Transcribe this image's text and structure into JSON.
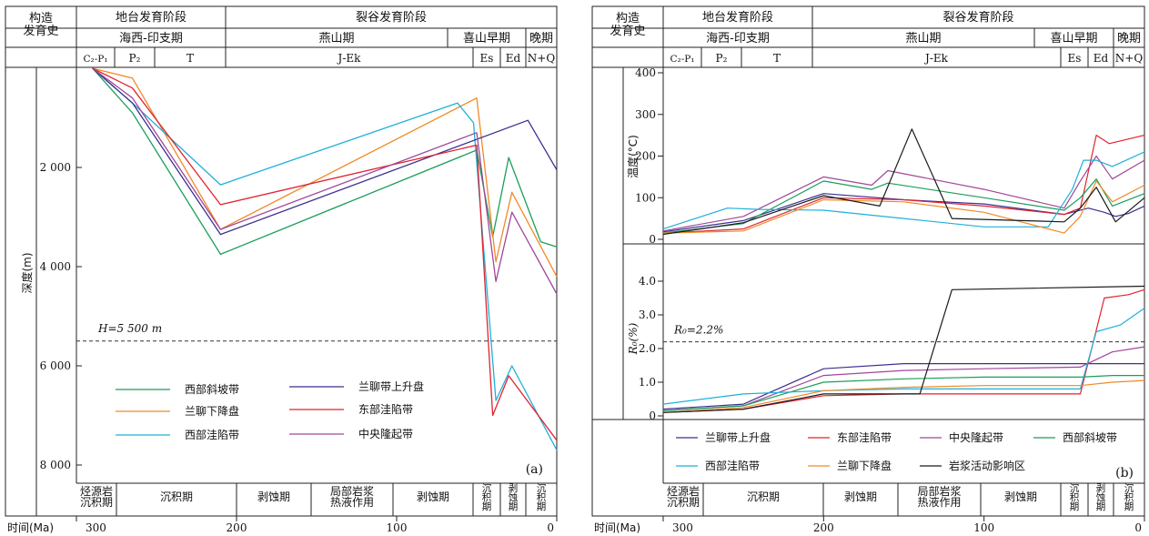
{
  "header": {
    "row_label": "构造\n发育史",
    "stages": [
      "地台发育阶段",
      "裂谷发育阶段"
    ],
    "periods": [
      "海西-印支期",
      "燕山期",
      "喜山早期",
      "晚期"
    ],
    "strata": [
      "C₂-P₁",
      "P₂",
      "T",
      "J-Ek",
      "Es",
      "Ed",
      "N+Q"
    ]
  },
  "events": [
    "烃源岩\n沉积期",
    "沉积期",
    "剥蚀期",
    "局部岩浆\n热液作用",
    "剥蚀期",
    "沉\n积\n期",
    "剥\n蚀\n期",
    "沉\n积\n期"
  ],
  "time_axis": {
    "label": "时间(Ma)",
    "ticks": [
      "300",
      "200",
      "100",
      "0"
    ]
  },
  "panel_a": {
    "tag": "(a)",
    "ylabel": "深度(m)",
    "yticks": [
      "2 000",
      "4 000",
      "6 000",
      "8 000"
    ],
    "ref_label": "H=5 500 m"
  },
  "panel_b": {
    "tag": "(b)",
    "temp_label": "温度(°C)",
    "temp_ticks": [
      "0",
      "100",
      "200",
      "300",
      "400"
    ],
    "ro_label": "R₀(%)",
    "ro_ticks": [
      "0",
      "1.0",
      "2.0",
      "3.0",
      "4.0"
    ],
    "ref_label": "R₀=2.2%"
  },
  "colors": {
    "xibu_xiepo": "#1a9e5a",
    "lanliao_xiajiang": "#f08a28",
    "xibu_waxian": "#1fb0d8",
    "lanliao_shangsheng": "#3a3190",
    "dongbu_waxian": "#e0232e",
    "zhongyang_longqi": "#a0479a",
    "yanjiang": "#1a1a1a"
  },
  "chart_data": [
    {
      "type": "line",
      "panel": "a",
      "title": "",
      "xlabel": "时间(Ma)",
      "ylabel": "深度(m)",
      "xlim": [
        300,
        0
      ],
      "ylim": [
        0,
        8300
      ],
      "reference_line": {
        "y": 5500,
        "label": "H=5 500 m"
      },
      "legend": {
        "placement": "bottom-center",
        "columns": 2
      },
      "series": [
        {
          "name": "西部斜坡带",
          "color": "#1a9e5a",
          "points": [
            [
              290,
              0
            ],
            [
              265,
              900
            ],
            [
              210,
              3750
            ],
            [
              50,
              1650
            ],
            [
              40,
              3400
            ],
            [
              30,
              1800
            ],
            [
              10,
              3500
            ],
            [
              0,
              3600
            ]
          ]
        },
        {
          "name": "兰聊下降盘",
          "color": "#f08a28",
          "points": [
            [
              290,
              0
            ],
            [
              265,
              200
            ],
            [
              210,
              3250
            ],
            [
              50,
              600
            ],
            [
              38,
              3900
            ],
            [
              28,
              2500
            ],
            [
              0,
              4200
            ]
          ]
        },
        {
          "name": "西部洼陷带",
          "color": "#1fb0d8",
          "points": [
            [
              290,
              0
            ],
            [
              265,
              700
            ],
            [
              210,
              2350
            ],
            [
              62,
              700
            ],
            [
              52,
              1100
            ],
            [
              38,
              6700
            ],
            [
              28,
              6000
            ],
            [
              0,
              7700
            ]
          ]
        },
        {
          "name": "兰聊带上升盘",
          "color": "#3a3190",
          "points": [
            [
              290,
              0
            ],
            [
              265,
              700
            ],
            [
              210,
              3350
            ],
            [
              18,
              1050
            ],
            [
              0,
              2050
            ]
          ]
        },
        {
          "name": "东部洼陷带",
          "color": "#e0232e",
          "points": [
            [
              290,
              0
            ],
            [
              265,
              400
            ],
            [
              210,
              2750
            ],
            [
              50,
              1550
            ],
            [
              40,
              7000
            ],
            [
              30,
              6200
            ],
            [
              0,
              7500
            ]
          ]
        },
        {
          "name": "中央隆起带",
          "color": "#a0479a",
          "points": [
            [
              290,
              0
            ],
            [
              265,
              600
            ],
            [
              210,
              3250
            ],
            [
              50,
              1300
            ],
            [
              38,
              4300
            ],
            [
              28,
              2900
            ],
            [
              0,
              4550
            ]
          ]
        }
      ]
    },
    {
      "type": "line",
      "panel": "b-temperature",
      "title": "",
      "xlabel": "时间(Ma)",
      "ylabel": "温度(°C)",
      "xlim": [
        300,
        0
      ],
      "ylim": [
        0,
        400
      ],
      "legend": {
        "placement": "bottom",
        "columns": 4
      },
      "series": [
        {
          "name": "兰聊带上升盘",
          "color": "#3a3190",
          "points": [
            [
              300,
              18
            ],
            [
              250,
              45
            ],
            [
              200,
              110
            ],
            [
              150,
              95
            ],
            [
              100,
              85
            ],
            [
              50,
              60
            ],
            [
              35,
              75
            ],
            [
              25,
              65
            ],
            [
              18,
              55
            ],
            [
              10,
              62
            ],
            [
              0,
              80
            ]
          ]
        },
        {
          "name": "东部洼陷带",
          "color": "#e0232e",
          "points": [
            [
              300,
              15
            ],
            [
              250,
              25
            ],
            [
              200,
              100
            ],
            [
              150,
              95
            ],
            [
              100,
              80
            ],
            [
              50,
              60
            ],
            [
              40,
              75
            ],
            [
              30,
              250
            ],
            [
              22,
              230
            ],
            [
              0,
              250
            ]
          ]
        },
        {
          "name": "中央隆起带",
          "color": "#a0479a",
          "points": [
            [
              300,
              20
            ],
            [
              250,
              55
            ],
            [
              200,
              150
            ],
            [
              170,
              130
            ],
            [
              160,
              165
            ],
            [
              100,
              120
            ],
            [
              50,
              75
            ],
            [
              40,
              140
            ],
            [
              30,
              200
            ],
            [
              20,
              145
            ],
            [
              0,
              190
            ]
          ]
        },
        {
          "name": "西部斜坡带",
          "color": "#1a9e5a",
          "points": [
            [
              300,
              15
            ],
            [
              250,
              38
            ],
            [
              200,
              140
            ],
            [
              170,
              120
            ],
            [
              160,
              135
            ],
            [
              100,
              100
            ],
            [
              50,
              70
            ],
            [
              40,
              100
            ],
            [
              30,
              145
            ],
            [
              20,
              80
            ],
            [
              0,
              110
            ]
          ]
        },
        {
          "name": "西部洼陷带",
          "color": "#1fb0d8",
          "points": [
            [
              300,
              25
            ],
            [
              260,
              75
            ],
            [
              240,
              72
            ],
            [
              200,
              70
            ],
            [
              150,
              50
            ],
            [
              100,
              30
            ],
            [
              60,
              30
            ],
            [
              45,
              120
            ],
            [
              38,
              190
            ],
            [
              30,
              190
            ],
            [
              20,
              175
            ],
            [
              0,
              210
            ]
          ]
        },
        {
          "name": "兰聊下降盘",
          "color": "#f08a28",
          "points": [
            [
              300,
              15
            ],
            [
              250,
              20
            ],
            [
              200,
              95
            ],
            [
              150,
              90
            ],
            [
              100,
              65
            ],
            [
              50,
              15
            ],
            [
              40,
              55
            ],
            [
              30,
              140
            ],
            [
              20,
              90
            ],
            [
              0,
              130
            ]
          ]
        },
        {
          "name": "岩浆活动影响区",
          "color": "#1a1a1a",
          "points": [
            [
              300,
              12
            ],
            [
              250,
              40
            ],
            [
              200,
              105
            ],
            [
              165,
              80
            ],
            [
              145,
              265
            ],
            [
              120,
              50
            ],
            [
              50,
              42
            ],
            [
              40,
              75
            ],
            [
              30,
              125
            ],
            [
              18,
              42
            ],
            [
              0,
              100
            ]
          ]
        }
      ]
    },
    {
      "type": "line",
      "panel": "b-ro",
      "title": "",
      "xlabel": "时间(Ma)",
      "ylabel": "R₀(%)",
      "xlim": [
        300,
        0
      ],
      "ylim": [
        0,
        4.8
      ],
      "reference_line": {
        "y": 2.2,
        "label": "R₀=2.2%"
      },
      "series": [
        {
          "name": "兰聊带上升盘",
          "color": "#3a3190",
          "points": [
            [
              300,
              0.2
            ],
            [
              250,
              0.35
            ],
            [
              200,
              1.4
            ],
            [
              150,
              1.55
            ],
            [
              100,
              1.55
            ],
            [
              50,
              1.55
            ],
            [
              0,
              1.55
            ]
          ]
        },
        {
          "name": "东部洼陷带",
          "color": "#e0232e",
          "points": [
            [
              300,
              0.1
            ],
            [
              250,
              0.2
            ],
            [
              200,
              0.6
            ],
            [
              150,
              0.65
            ],
            [
              100,
              0.65
            ],
            [
              40,
              0.65
            ],
            [
              25,
              3.5
            ],
            [
              10,
              3.6
            ],
            [
              0,
              3.75
            ]
          ]
        },
        {
          "name": "中央隆起带",
          "color": "#a0479a",
          "points": [
            [
              300,
              0.15
            ],
            [
              250,
              0.3
            ],
            [
              200,
              1.2
            ],
            [
              150,
              1.35
            ],
            [
              100,
              1.4
            ],
            [
              40,
              1.45
            ],
            [
              20,
              1.9
            ],
            [
              0,
              2.05
            ]
          ]
        },
        {
          "name": "西部斜坡带",
          "color": "#1a9e5a",
          "points": [
            [
              300,
              0.15
            ],
            [
              250,
              0.3
            ],
            [
              200,
              1.0
            ],
            [
              150,
              1.1
            ],
            [
              100,
              1.15
            ],
            [
              40,
              1.15
            ],
            [
              20,
              1.2
            ],
            [
              0,
              1.2
            ]
          ]
        },
        {
          "name": "西部洼陷带",
          "color": "#1fb0d8",
          "points": [
            [
              300,
              0.35
            ],
            [
              250,
              0.65
            ],
            [
              200,
              0.75
            ],
            [
              150,
              0.8
            ],
            [
              100,
              0.8
            ],
            [
              40,
              0.8
            ],
            [
              30,
              2.5
            ],
            [
              15,
              2.7
            ],
            [
              0,
              3.2
            ]
          ]
        },
        {
          "name": "兰聊下降盘",
          "color": "#f08a28",
          "points": [
            [
              300,
              0.1
            ],
            [
              250,
              0.25
            ],
            [
              200,
              0.75
            ],
            [
              150,
              0.85
            ],
            [
              100,
              0.9
            ],
            [
              40,
              0.9
            ],
            [
              20,
              1.0
            ],
            [
              0,
              1.05
            ]
          ]
        },
        {
          "name": "岩浆活动影响区",
          "color": "#1a1a1a",
          "points": [
            [
              300,
              0.1
            ],
            [
              250,
              0.2
            ],
            [
              200,
              0.65
            ],
            [
              150,
              0.65
            ],
            [
              140,
              0.65
            ],
            [
              120,
              3.75
            ],
            [
              0,
              3.85
            ]
          ]
        }
      ]
    }
  ]
}
